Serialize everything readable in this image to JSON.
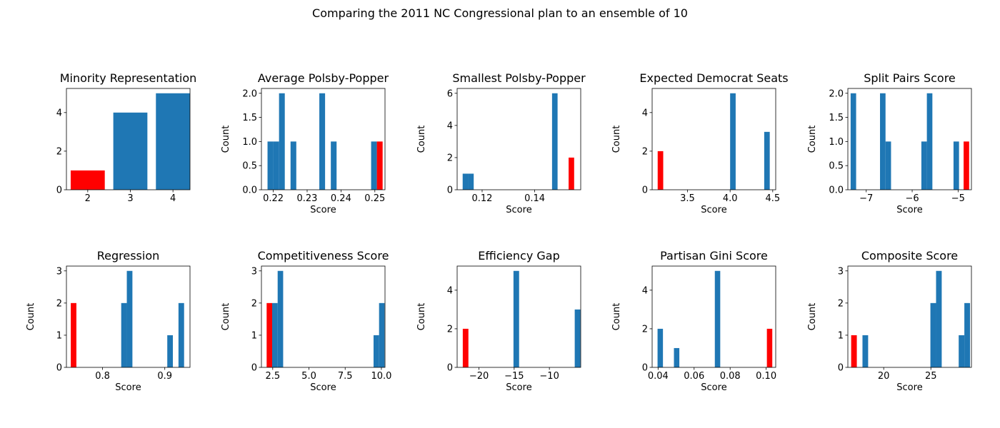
{
  "figure": {
    "title": "Comparing the 2011 NC Congressional plan to an ensemble of 10"
  },
  "colors": {
    "ensemble": "#1f77b4",
    "plan": "#ff0000"
  },
  "chart_data": [
    {
      "type": "bar",
      "title": "Minority Representation",
      "xlabel": "",
      "ylabel": "",
      "xlim": [
        1.5,
        4.4
      ],
      "ylim": [
        0,
        5.25
      ],
      "xticks": [
        2,
        3,
        4
      ],
      "yticks": [
        0,
        2,
        4
      ],
      "series": [
        {
          "color": "#ff0000",
          "bars": [
            {
              "x0": 1.6,
              "x1": 2.4,
              "v": 1
            }
          ]
        },
        {
          "color": "#1f77b4",
          "bars": [
            {
              "x0": 2.6,
              "x1": 3.4,
              "v": 4
            },
            {
              "x0": 3.6,
              "x1": 4.4,
              "v": 5
            }
          ]
        }
      ]
    },
    {
      "type": "bar",
      "title": "Average Polsby-Popper",
      "xlabel": "Score",
      "ylabel": "Count",
      "xlim": [
        0.2165,
        0.253
      ],
      "ylim": [
        0,
        2.1
      ],
      "xticks": [
        0.22,
        0.23,
        0.24,
        0.25
      ],
      "yticks": [
        0.0,
        0.5,
        1.0,
        1.5,
        2.0
      ],
      "series": [
        {
          "color": "#1f77b4",
          "bars": [
            {
              "x0": 0.2183,
              "x1": 0.22,
              "v": 1
            },
            {
              "x0": 0.22,
              "x1": 0.2217,
              "v": 1
            },
            {
              "x0": 0.2217,
              "x1": 0.2234,
              "v": 2
            },
            {
              "x0": 0.2251,
              "x1": 0.2268,
              "v": 1
            },
            {
              "x0": 0.2336,
              "x1": 0.2353,
              "v": 2
            },
            {
              "x0": 0.237,
              "x1": 0.2387,
              "v": 1
            },
            {
              "x0": 0.2489,
              "x1": 0.2506,
              "v": 1
            }
          ]
        },
        {
          "color": "#ff0000",
          "bars": [
            {
              "x0": 0.2506,
              "x1": 0.2523,
              "v": 1
            }
          ]
        }
      ]
    },
    {
      "type": "bar",
      "title": "Smallest Polsby-Popper",
      "xlabel": "Score",
      "ylabel": "Count",
      "xlim": [
        0.1105,
        0.1575
      ],
      "ylim": [
        0,
        6.3
      ],
      "xticks": [
        0.12,
        0.14
      ],
      "yticks": [
        0,
        2,
        4,
        6
      ],
      "series": [
        {
          "color": "#1f77b4",
          "bars": [
            {
              "x0": 0.1126,
              "x1": 0.1147,
              "v": 1
            },
            {
              "x0": 0.1147,
              "x1": 0.1168,
              "v": 1
            },
            {
              "x0": 0.1466,
              "x1": 0.1487,
              "v": 6
            }
          ]
        },
        {
          "color": "#ff0000",
          "bars": [
            {
              "x0": 0.1529,
              "x1": 0.155,
              "v": 2
            }
          ]
        }
      ]
    },
    {
      "type": "bar",
      "title": "Expected Democrat Seats",
      "xlabel": "Score",
      "ylabel": "Count",
      "xlim": [
        3.085,
        4.535
      ],
      "ylim": [
        0,
        5.25
      ],
      "xticks": [
        3.5,
        4.0,
        4.5
      ],
      "yticks": [
        0,
        2,
        4
      ],
      "series": [
        {
          "color": "#ff0000",
          "bars": [
            {
              "x0": 3.15,
              "x1": 3.215,
              "v": 2
            }
          ]
        },
        {
          "color": "#1f77b4",
          "bars": [
            {
              "x0": 4.0,
              "x1": 4.065,
              "v": 5
            },
            {
              "x0": 4.4,
              "x1": 4.465,
              "v": 3
            }
          ]
        }
      ]
    },
    {
      "type": "bar",
      "title": "Split Pairs Score",
      "xlabel": "Score",
      "ylabel": "Count",
      "xlim": [
        -7.4,
        -4.71
      ],
      "ylim": [
        0,
        2.1
      ],
      "xticks": [
        -7,
        -6,
        -5
      ],
      "yticks": [
        0.0,
        0.5,
        1.0,
        1.5,
        2.0
      ],
      "series": [
        {
          "color": "#1f77b4",
          "bars": [
            {
              "x0": -7.34,
              "x1": -7.22,
              "v": 2
            },
            {
              "x0": -6.7,
              "x1": -6.58,
              "v": 2
            },
            {
              "x0": -6.58,
              "x1": -6.46,
              "v": 1
            },
            {
              "x0": -5.8,
              "x1": -5.68,
              "v": 1
            },
            {
              "x0": -5.68,
              "x1": -5.56,
              "v": 2
            },
            {
              "x0": -5.1,
              "x1": -4.98,
              "v": 1
            }
          ]
        },
        {
          "color": "#ff0000",
          "bars": [
            {
              "x0": -4.88,
              "x1": -4.76,
              "v": 1
            }
          ]
        }
      ]
    },
    {
      "type": "bar",
      "title": "Regression",
      "xlabel": "Score",
      "ylabel": "Count",
      "xlim": [
        0.742,
        0.9405
      ],
      "ylim": [
        0,
        3.15
      ],
      "xticks": [
        0.8,
        0.9
      ],
      "yticks": [
        0,
        1,
        2,
        3
      ],
      "series": [
        {
          "color": "#ff0000",
          "bars": [
            {
              "x0": 0.749,
              "x1": 0.758,
              "v": 2
            }
          ]
        },
        {
          "color": "#1f77b4",
          "bars": [
            {
              "x0": 0.83,
              "x1": 0.839,
              "v": 2
            },
            {
              "x0": 0.839,
              "x1": 0.848,
              "v": 3
            },
            {
              "x0": 0.904,
              "x1": 0.913,
              "v": 1
            },
            {
              "x0": 0.922,
              "x1": 0.931,
              "v": 2
            }
          ]
        }
      ]
    },
    {
      "type": "bar",
      "title": "Competitiveness Score",
      "xlabel": "Score",
      "ylabel": "Count",
      "xlim": [
        1.72,
        10.25
      ],
      "ylim": [
        0,
        3.15
      ],
      "xticks": [
        2.5,
        5.0,
        7.5,
        10.0
      ],
      "yticks": [
        0,
        1,
        2,
        3
      ],
      "series": [
        {
          "color": "#1f77b4",
          "bars": [
            {
              "x0": 2.46,
              "x1": 2.84,
              "v": 2
            },
            {
              "x0": 2.84,
              "x1": 3.22,
              "v": 3
            },
            {
              "x0": 9.46,
              "x1": 9.84,
              "v": 1
            },
            {
              "x0": 9.84,
              "x1": 10.22,
              "v": 2
            }
          ]
        },
        {
          "color": "#ff0000",
          "bars": [
            {
              "x0": 2.08,
              "x1": 2.46,
              "v": 2
            }
          ]
        }
      ]
    },
    {
      "type": "bar",
      "title": "Efficiency Gap",
      "xlabel": "Score",
      "ylabel": "Count",
      "xlim": [
        -23.1,
        -5.55
      ],
      "ylim": [
        0,
        5.25
      ],
      "xticks": [
        -20,
        -15,
        -10
      ],
      "yticks": [
        0,
        2,
        4
      ],
      "series": [
        {
          "color": "#ff0000",
          "bars": [
            {
              "x0": -22.3,
              "x1": -21.5,
              "v": 2
            }
          ]
        },
        {
          "color": "#1f77b4",
          "bars": [
            {
              "x0": -15.1,
              "x1": -14.3,
              "v": 5
            },
            {
              "x0": -6.4,
              "x1": -5.6,
              "v": 3
            }
          ]
        }
      ]
    },
    {
      "type": "bar",
      "title": "Partisan Gini Score",
      "xlabel": "Score",
      "ylabel": "Count",
      "xlim": [
        0.0367,
        0.1053
      ],
      "ylim": [
        0,
        5.25
      ],
      "xticks": [
        0.04,
        0.06,
        0.08,
        0.1
      ],
      "yticks": [
        0,
        2,
        4
      ],
      "series": [
        {
          "color": "#1f77b4",
          "bars": [
            {
              "x0": 0.0397,
              "x1": 0.0427,
              "v": 2
            },
            {
              "x0": 0.0488,
              "x1": 0.0518,
              "v": 1
            },
            {
              "x0": 0.0715,
              "x1": 0.0745,
              "v": 5
            }
          ]
        },
        {
          "color": "#ff0000",
          "bars": [
            {
              "x0": 0.1004,
              "x1": 0.1034,
              "v": 2
            }
          ]
        }
      ]
    },
    {
      "type": "bar",
      "title": "Composite Score",
      "xlabel": "Score",
      "ylabel": "Count",
      "xlim": [
        16.2,
        29.3
      ],
      "ylim": [
        0,
        3.15
      ],
      "xticks": [
        20,
        25
      ],
      "yticks": [
        0,
        1,
        2,
        3
      ],
      "series": [
        {
          "color": "#ff0000",
          "bars": [
            {
              "x0": 16.55,
              "x1": 17.15,
              "v": 1
            }
          ]
        },
        {
          "color": "#1f77b4",
          "bars": [
            {
              "x0": 17.75,
              "x1": 18.35,
              "v": 1
            },
            {
              "x0": 24.95,
              "x1": 25.55,
              "v": 2
            },
            {
              "x0": 25.55,
              "x1": 26.15,
              "v": 3
            },
            {
              "x0": 27.95,
              "x1": 28.55,
              "v": 1
            },
            {
              "x0": 28.55,
              "x1": 29.15,
              "v": 2
            }
          ]
        }
      ]
    }
  ]
}
